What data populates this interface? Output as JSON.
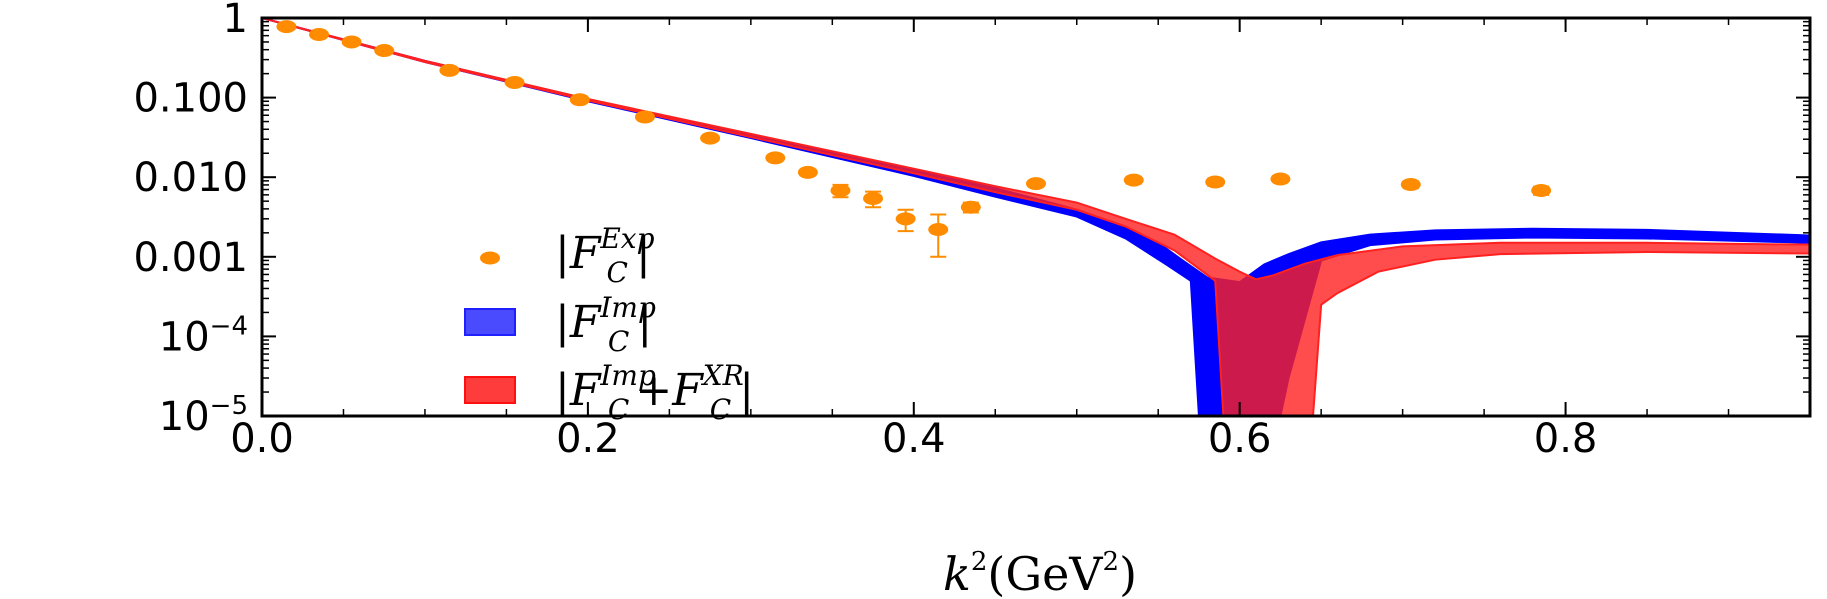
{
  "chart_data": {
    "type": "scatter",
    "xlabel_base": "k",
    "xlabel_exp": "2",
    "xlabel_unit": "(GeV",
    "xlabel_unit_exp": "2",
    "xlabel_close": ")",
    "xlim": [
      0.0,
      0.95
    ],
    "ylim": [
      1e-05,
      1
    ],
    "yscale": "log",
    "x_ticks": [
      {
        "value": 0.0,
        "label": "0.0"
      },
      {
        "value": 0.2,
        "label": "0.2"
      },
      {
        "value": 0.4,
        "label": "0.4"
      },
      {
        "value": 0.6,
        "label": "0.6"
      },
      {
        "value": 0.8,
        "label": "0.8"
      }
    ],
    "y_ticks": [
      {
        "value": 1,
        "label": "1",
        "exp": ""
      },
      {
        "value": 0.1,
        "label": "0.100",
        "exp": ""
      },
      {
        "value": 0.01,
        "label": "0.010",
        "exp": ""
      },
      {
        "value": 0.001,
        "label": "0.001",
        "exp": ""
      },
      {
        "value": 0.0001,
        "label": "10",
        "exp": "−4"
      },
      {
        "value": 1e-05,
        "label": "10",
        "exp": "−5"
      }
    ],
    "legend": {
      "placement": "center-left",
      "entries": [
        {
          "key": "exp",
          "symbol": "dot",
          "color": "#ff8c00",
          "base": "F",
          "sub": "C",
          "sup": "Exp",
          "tail": ""
        },
        {
          "key": "imp",
          "symbol": "box",
          "color": "#4a4aff",
          "base": "F",
          "sub": "C",
          "sup": "Imp",
          "tail": ""
        },
        {
          "key": "imp_xr",
          "symbol": "box",
          "color": "#ff3c3c",
          "base": "F",
          "sub": "C",
          "sup": "Imp",
          "tail": "+F",
          "tail_sub": "C",
          "tail_sup": "XR"
        }
      ]
    },
    "series": [
      {
        "key": "exp",
        "kind": "points",
        "color": "#ff8c00",
        "points": [
          {
            "x": 0.015,
            "y": 0.78,
            "err": 0.03
          },
          {
            "x": 0.035,
            "y": 0.62,
            "err": 0.03
          },
          {
            "x": 0.055,
            "y": 0.5,
            "err": 0.02
          },
          {
            "x": 0.075,
            "y": 0.39,
            "err": 0.02
          },
          {
            "x": 0.115,
            "y": 0.22,
            "err": 0.01
          },
          {
            "x": 0.155,
            "y": 0.155,
            "err": 0.008
          },
          {
            "x": 0.195,
            "y": 0.094,
            "err": 0.005
          },
          {
            "x": 0.235,
            "y": 0.057,
            "err": 0.003
          },
          {
            "x": 0.275,
            "y": 0.031,
            "err": 0.002
          },
          {
            "x": 0.315,
            "y": 0.0175,
            "err": 0.0012
          },
          {
            "x": 0.335,
            "y": 0.0115,
            "err": 0.001
          },
          {
            "x": 0.355,
            "y": 0.0068,
            "err": 0.0012
          },
          {
            "x": 0.375,
            "y": 0.0054,
            "err": 0.0012
          },
          {
            "x": 0.395,
            "y": 0.003,
            "err": 0.0009
          },
          {
            "x": 0.415,
            "y": 0.0022,
            "err": 0.0012
          },
          {
            "x": 0.435,
            "y": 0.0042,
            "err": 0.0006
          },
          {
            "x": 0.475,
            "y": 0.0083,
            "err": 0.0006
          },
          {
            "x": 0.535,
            "y": 0.0092,
            "err": 0.0009
          },
          {
            "x": 0.585,
            "y": 0.0087,
            "err": 0.0009
          },
          {
            "x": 0.625,
            "y": 0.0095,
            "err": 0.0008
          },
          {
            "x": 0.705,
            "y": 0.0081,
            "err": 0.0008
          },
          {
            "x": 0.785,
            "y": 0.0068,
            "err": 0.0008
          }
        ]
      },
      {
        "key": "imp",
        "kind": "band",
        "color": "#0000ff",
        "upper": [
          [
            0.0,
            1.0
          ],
          [
            0.1,
            0.29
          ],
          [
            0.2,
            0.095
          ],
          [
            0.3,
            0.034
          ],
          [
            0.4,
            0.0122
          ],
          [
            0.45,
            0.0073
          ],
          [
            0.5,
            0.0039
          ],
          [
            0.53,
            0.0024
          ],
          [
            0.55,
            0.0015
          ],
          [
            0.565,
            0.0009
          ],
          [
            0.58,
            0.00055
          ],
          [
            0.6,
            0.00048
          ],
          [
            0.615,
            0.0008
          ],
          [
            0.63,
            0.00108
          ],
          [
            0.65,
            0.00152
          ],
          [
            0.68,
            0.0019
          ],
          [
            0.72,
            0.00215
          ],
          [
            0.78,
            0.00225
          ],
          [
            0.85,
            0.00218
          ],
          [
            0.95,
            0.00185
          ]
        ],
        "lower": [
          [
            0.0,
            1.0
          ],
          [
            0.1,
            0.28
          ],
          [
            0.2,
            0.09
          ],
          [
            0.3,
            0.031
          ],
          [
            0.4,
            0.0104
          ],
          [
            0.45,
            0.0057
          ],
          [
            0.5,
            0.0032
          ],
          [
            0.53,
            0.0017
          ],
          [
            0.555,
            0.0008
          ],
          [
            0.57,
            0.0005
          ],
          [
            0.575,
            1e-05
          ],
          [
            0.625,
            1e-05
          ],
          [
            0.63,
            3e-05
          ],
          [
            0.65,
            0.0009
          ],
          [
            0.68,
            0.0014
          ],
          [
            0.72,
            0.00165
          ],
          [
            0.78,
            0.00175
          ],
          [
            0.85,
            0.0017
          ],
          [
            0.95,
            0.0015
          ]
        ]
      },
      {
        "key": "imp_xr",
        "kind": "band",
        "color": "#ff2020",
        "upper": [
          [
            0.0,
            1.0
          ],
          [
            0.1,
            0.29
          ],
          [
            0.2,
            0.096
          ],
          [
            0.3,
            0.035
          ],
          [
            0.4,
            0.0128
          ],
          [
            0.45,
            0.0077
          ],
          [
            0.5,
            0.0048
          ],
          [
            0.53,
            0.003
          ],
          [
            0.56,
            0.0019
          ],
          [
            0.585,
            0.00095
          ],
          [
            0.6,
            0.00065
          ],
          [
            0.61,
            0.00052
          ],
          [
            0.62,
            0.00058
          ],
          [
            0.64,
            0.00082
          ],
          [
            0.66,
            0.00105
          ],
          [
            0.7,
            0.00135
          ],
          [
            0.76,
            0.0015
          ],
          [
            0.85,
            0.0015
          ],
          [
            0.95,
            0.00142
          ]
        ],
        "lower": [
          [
            0.0,
            1.0
          ],
          [
            0.1,
            0.28
          ],
          [
            0.2,
            0.092
          ],
          [
            0.3,
            0.032
          ],
          [
            0.4,
            0.0112
          ],
          [
            0.45,
            0.0065
          ],
          [
            0.5,
            0.0039
          ],
          [
            0.53,
            0.0024
          ],
          [
            0.56,
            0.0012
          ],
          [
            0.585,
            0.0005
          ],
          [
            0.59,
            1e-05
          ],
          [
            0.645,
            1e-05
          ],
          [
            0.65,
            0.00025
          ],
          [
            0.66,
            0.00035
          ],
          [
            0.685,
            0.00065
          ],
          [
            0.72,
            0.00092
          ],
          [
            0.76,
            0.00108
          ],
          [
            0.85,
            0.00115
          ],
          [
            0.95,
            0.0011
          ]
        ]
      }
    ]
  }
}
